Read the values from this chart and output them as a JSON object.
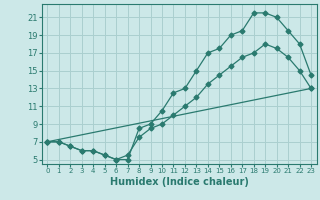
{
  "title": "",
  "xlabel": "Humidex (Indice chaleur)",
  "ylabel": "",
  "bg_color": "#cce8e8",
  "line_color": "#2a7a6f",
  "grid_color": "#aacfcf",
  "xlim": [
    -0.5,
    23.5
  ],
  "ylim": [
    4.5,
    22.5
  ],
  "xticks": [
    0,
    1,
    2,
    3,
    4,
    5,
    6,
    7,
    8,
    9,
    10,
    11,
    12,
    13,
    14,
    15,
    16,
    17,
    18,
    19,
    20,
    21,
    22,
    23
  ],
  "yticks": [
    5,
    7,
    9,
    11,
    13,
    15,
    17,
    19,
    21
  ],
  "curve1_x": [
    0,
    1,
    2,
    3,
    4,
    5,
    6,
    7,
    8,
    9,
    10,
    11,
    12,
    13,
    14,
    15,
    16,
    17,
    18,
    19,
    20,
    21,
    22,
    23
  ],
  "curve1_y": [
    7,
    7,
    6.5,
    6,
    6,
    5.5,
    5,
    5,
    8.5,
    9,
    10.5,
    12.5,
    13,
    15,
    17,
    17.5,
    19,
    19.5,
    21.5,
    21.5,
    21,
    19.5,
    18,
    14.5
  ],
  "curve2_x": [
    0,
    1,
    2,
    3,
    4,
    5,
    6,
    7,
    8,
    9,
    10,
    11,
    12,
    13,
    14,
    15,
    16,
    17,
    18,
    19,
    20,
    21,
    22,
    23
  ],
  "curve2_y": [
    7,
    7,
    6.5,
    6,
    6,
    5.5,
    5,
    5.5,
    7.5,
    8.5,
    9,
    10,
    11,
    12,
    13.5,
    14.5,
    15.5,
    16.5,
    17,
    18,
    17.5,
    16.5,
    15,
    13
  ],
  "curve3_x": [
    0,
    23
  ],
  "curve3_y": [
    7,
    13
  ]
}
